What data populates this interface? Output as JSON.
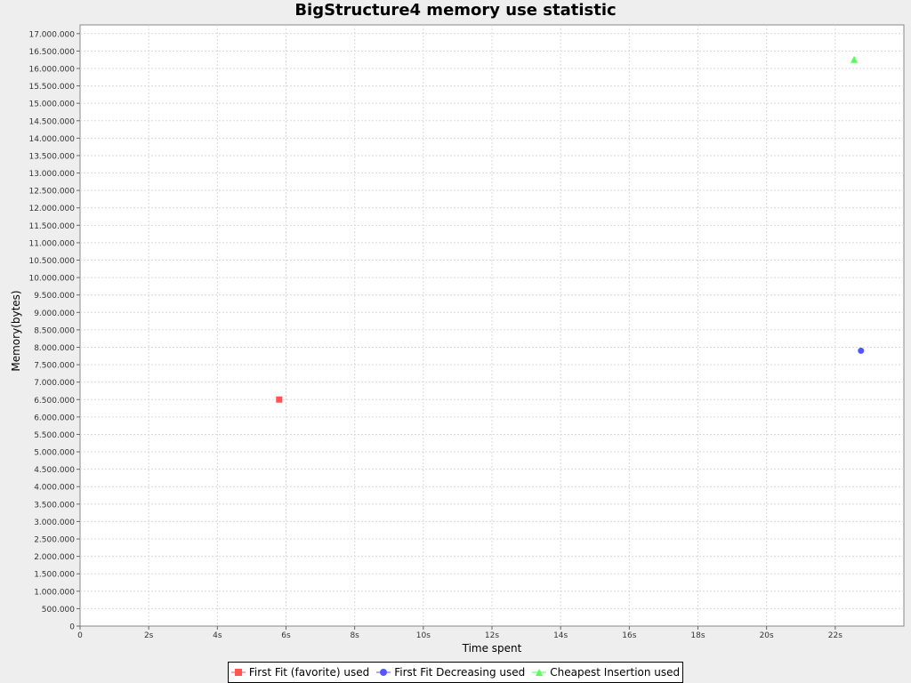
{
  "chart_data": {
    "type": "scatter",
    "title": "BigStructure4 memory use statistic",
    "xlabel": "Time spent",
    "ylabel": "Memory(bytes)",
    "xlim": [
      0,
      24
    ],
    "ylim": [
      0,
      17250000
    ],
    "x_ticks": [
      0,
      2,
      4,
      6,
      8,
      10,
      12,
      14,
      16,
      18,
      20,
      22
    ],
    "x_tick_labels": [
      "0",
      "2s",
      "4s",
      "6s",
      "8s",
      "10s",
      "12s",
      "14s",
      "16s",
      "18s",
      "20s",
      "22s"
    ],
    "y_tick_step": 500000,
    "y_tick_labels": [
      "0",
      "500.000",
      "1.000.000",
      "1.500.000",
      "2.000.000",
      "2.500.000",
      "3.000.000",
      "3.500.000",
      "4.000.000",
      "4.500.000",
      "5.000.000",
      "5.500.000",
      "6.000.000",
      "6.500.000",
      "7.000.000",
      "7.500.000",
      "8.000.000",
      "8.500.000",
      "9.000.000",
      "9.500.000",
      "10.000.000",
      "10.500.000",
      "11.000.000",
      "11.500.000",
      "12.000.000",
      "12.500.000",
      "13.000.000",
      "13.500.000",
      "14.000.000",
      "14.500.000",
      "15.000.000",
      "15.500.000",
      "16.000.000",
      "16.500.000",
      "17.000.000"
    ],
    "grid": true,
    "legend_position": "bottom",
    "series": [
      {
        "name": "First Fit (favorite) used",
        "color": "#ff5555",
        "marker": "square",
        "points": [
          {
            "x": 5.8,
            "y": 6500000
          }
        ]
      },
      {
        "name": "First Fit Decreasing used",
        "color": "#5555ff",
        "marker": "circle",
        "points": [
          {
            "x": 22.75,
            "y": 7900000
          }
        ]
      },
      {
        "name": "Cheapest Insertion used",
        "color": "#55ff55",
        "marker": "triangle",
        "points": [
          {
            "x": 22.55,
            "y": 16250000
          }
        ]
      }
    ]
  }
}
